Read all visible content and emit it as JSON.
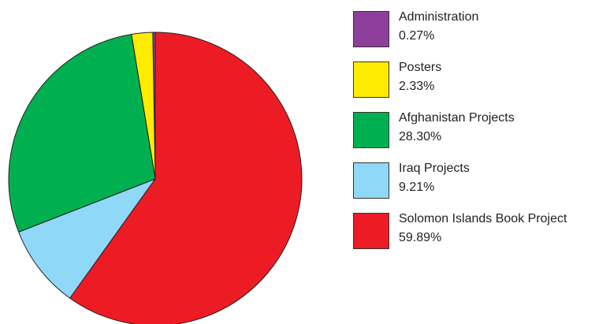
{
  "chart_data": {
    "type": "pie",
    "title": "",
    "slices": [
      {
        "label": "Administration",
        "value": 0.27,
        "value_label": "0.27%",
        "color": "#8e3f9c"
      },
      {
        "label": "Posters",
        "value": 2.33,
        "value_label": "2.33%",
        "color": "#ffec00"
      },
      {
        "label": "Afghanistan Projects",
        "value": 28.3,
        "value_label": "28.30%",
        "color": "#00b050"
      },
      {
        "label": "Iraq Projects",
        "value": 9.21,
        "value_label": "9.21%",
        "color": "#8fd8f8"
      },
      {
        "label": "Solomon Islands Book Project",
        "value": 59.89,
        "value_label": "59.89%",
        "color": "#ed1c24"
      }
    ],
    "legend_position": "right",
    "slice_order": "counterclockwise from 12 o'clock: Administration, Posters, Afghanistan Projects, Iraq Projects, Solomon Islands Book Project"
  }
}
